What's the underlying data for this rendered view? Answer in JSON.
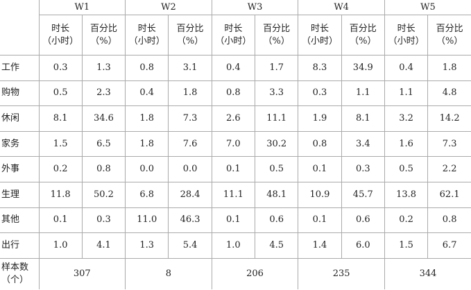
{
  "table": {
    "groups": [
      "W1",
      "W2",
      "W3",
      "W4",
      "W5"
    ],
    "subheaders": [
      {
        "label": "时长",
        "unit": "（小时）"
      },
      {
        "label": "百分比",
        "unit": "（%）"
      }
    ],
    "rows": [
      {
        "label": "工作",
        "cells": [
          "0.3",
          "1.3",
          "0.8",
          "3.1",
          "0.4",
          "1.7",
          "8.3",
          "34.9",
          "0.4",
          "1.8"
        ]
      },
      {
        "label": "购物",
        "cells": [
          "0.5",
          "2.3",
          "0.4",
          "1.8",
          "0.8",
          "3.3",
          "0.3",
          "1.1",
          "1.1",
          "4.8"
        ]
      },
      {
        "label": "休闲",
        "cells": [
          "8.1",
          "34.6",
          "1.8",
          "7.3",
          "2.6",
          "11.1",
          "1.9",
          "8.1",
          "3.2",
          "14.2"
        ]
      },
      {
        "label": "家务",
        "cells": [
          "1.5",
          "6.5",
          "1.8",
          "7.6",
          "7.0",
          "30.2",
          "0.8",
          "3.4",
          "1.6",
          "7.3"
        ]
      },
      {
        "label": "外事",
        "cells": [
          "0.2",
          "0.8",
          "0.0",
          "0.0",
          "0.1",
          "0.5",
          "0.1",
          "0.3",
          "0.5",
          "2.2"
        ]
      },
      {
        "label": "生理",
        "cells": [
          "11.8",
          "50.2",
          "6.8",
          "28.4",
          "11.1",
          "48.1",
          "10.9",
          "45.7",
          "13.8",
          "62.1"
        ]
      },
      {
        "label": "其他",
        "cells": [
          "0.1",
          "0.3",
          "11.0",
          "46.3",
          "0.1",
          "0.6",
          "0.1",
          "0.6",
          "0.2",
          "0.8"
        ]
      },
      {
        "label": "出行",
        "cells": [
          "1.0",
          "4.1",
          "1.3",
          "5.4",
          "1.0",
          "4.5",
          "1.4",
          "6.0",
          "1.5",
          "6.7"
        ]
      }
    ],
    "sample": {
      "label": "样本数",
      "unit": "（个）",
      "values": [
        307,
        8,
        206,
        235,
        344
      ]
    }
  }
}
